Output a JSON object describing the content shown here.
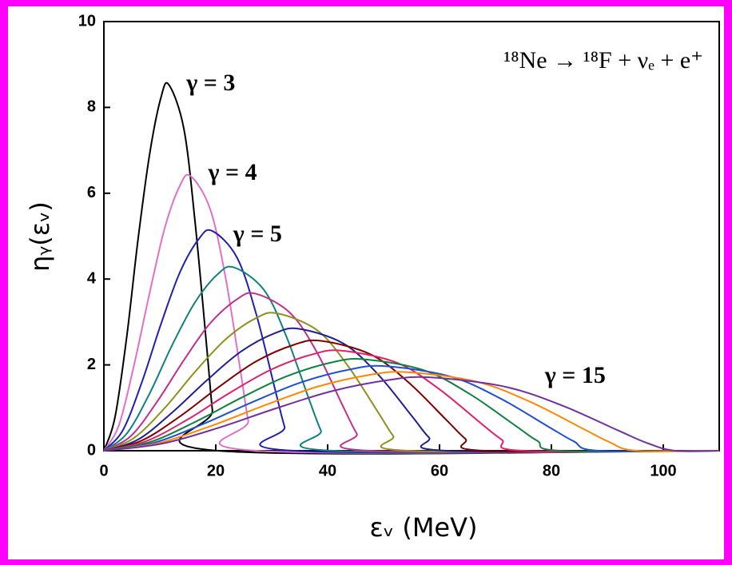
{
  "chart_data": {
    "type": "line",
    "equation": "¹⁸Ne → ¹⁸F + νₑ + e⁺",
    "xlabel": "εᵥ (MeV)",
    "ylabel": "ηᵧ(εᵥ)",
    "xlim": [
      0,
      110
    ],
    "ylim": [
      0,
      10
    ],
    "xticks": [
      0,
      20,
      40,
      60,
      80,
      100
    ],
    "yticks": [
      0,
      2,
      4,
      6,
      8,
      10
    ],
    "series": [
      {
        "name": "γ = 3",
        "color": "#000000",
        "x": [
          0,
          2.0,
          4.1,
          6.1,
          8.2,
          10.2,
          11.6,
          14.3,
          16.3,
          18.4,
          19.4,
          20.4,
          110
        ],
        "values": [
          0,
          0.79,
          2.67,
          4.92,
          6.93,
          8.23,
          8.53,
          7.5,
          5.33,
          2.39,
          0.94,
          0,
          0
        ]
      },
      {
        "name": "γ = 4",
        "color": "#e070c8",
        "x": [
          0,
          2.7,
          5.4,
          8.2,
          10.9,
          13.6,
          15.5,
          19.0,
          21.8,
          24.5,
          25.8,
          27.2,
          110
        ],
        "values": [
          0,
          0.6,
          2.0,
          3.69,
          5.2,
          6.18,
          6.4,
          5.63,
          4.0,
          1.79,
          0.7,
          0,
          0
        ]
      },
      {
        "name": "γ = 5",
        "color": "#2020b0",
        "x": [
          0,
          3.4,
          6.8,
          10.2,
          13.6,
          17,
          19.4,
          23.8,
          27.2,
          30.6,
          32.3,
          34,
          110
        ],
        "values": [
          0,
          0.48,
          1.6,
          2.95,
          4.16,
          4.94,
          5.12,
          4.5,
          3.2,
          1.43,
          0.56,
          0,
          0
        ]
      },
      {
        "color": "#108080",
        "x": [
          0,
          4.1,
          8.2,
          12.2,
          16.3,
          20.4,
          23.3,
          28.6,
          32.6,
          36.7,
          38.8,
          40.8,
          110
        ],
        "values": [
          0,
          0.4,
          1.34,
          2.46,
          3.46,
          4.12,
          4.27,
          3.75,
          2.67,
          1.19,
          0.47,
          0,
          0
        ]
      },
      {
        "color": "#c03090",
        "x": [
          0,
          4.8,
          9.5,
          14.3,
          19.0,
          23.8,
          27.1,
          33.3,
          38.1,
          42.8,
          45.2,
          47.6,
          110
        ],
        "values": [
          0,
          0.34,
          1.14,
          2.11,
          2.97,
          3.53,
          3.66,
          3.21,
          2.29,
          1.02,
          0.4,
          0,
          0
        ]
      },
      {
        "color": "#909020",
        "x": [
          0,
          5.4,
          10.9,
          16.3,
          21.8,
          27.2,
          31.0,
          38.1,
          43.5,
          49.0,
          51.7,
          54.4,
          110
        ],
        "values": [
          0,
          0.3,
          1.0,
          1.84,
          2.6,
          3.09,
          3.2,
          2.81,
          2.0,
          0.9,
          0.35,
          0,
          0
        ]
      },
      {
        "color": "#202090",
        "x": [
          0,
          6.1,
          12.2,
          18.4,
          24.5,
          30.6,
          34.9,
          42.8,
          49.0,
          55.1,
          58.1,
          61.2,
          110
        ],
        "values": [
          0,
          0.26,
          0.89,
          1.64,
          2.31,
          2.74,
          2.84,
          2.5,
          1.78,
          0.8,
          0.31,
          0,
          0
        ]
      },
      {
        "color": "#800000",
        "x": [
          0,
          6.8,
          13.6,
          20.4,
          27.2,
          34,
          38.8,
          47.6,
          54.4,
          61.2,
          64.6,
          68,
          110
        ],
        "values": [
          0,
          0.24,
          0.8,
          1.47,
          2.08,
          2.47,
          2.56,
          2.25,
          1.6,
          0.72,
          0.28,
          0,
          0
        ]
      },
      {
        "color": "#e0206a",
        "x": [
          0,
          7.5,
          15.0,
          22.4,
          29.9,
          37.4,
          42.6,
          52.4,
          59.8,
          67.3,
          71.1,
          74.8,
          110
        ],
        "values": [
          0,
          0.22,
          0.73,
          1.34,
          1.89,
          2.25,
          2.33,
          2.05,
          1.45,
          0.65,
          0.26,
          0,
          0
        ]
      },
      {
        "color": "#108040",
        "x": [
          0,
          8.2,
          16.3,
          24.5,
          32.6,
          40.8,
          46.5,
          57.1,
          65.3,
          73.4,
          77.5,
          81.6,
          110
        ],
        "values": [
          0,
          0.2,
          0.67,
          1.23,
          1.73,
          2.06,
          2.13,
          1.88,
          1.33,
          0.6,
          0.23,
          0,
          0
        ]
      },
      {
        "color": "#2050d0",
        "x": [
          0,
          8.8,
          17.7,
          26.5,
          35.4,
          44.2,
          50.4,
          61.9,
          70.7,
          79.6,
          84.0,
          88.4,
          110
        ],
        "values": [
          0,
          0.18,
          0.62,
          1.13,
          1.6,
          1.9,
          1.97,
          1.73,
          1.23,
          0.55,
          0.22,
          0,
          0
        ]
      },
      {
        "color": "#ff8800",
        "x": [
          0,
          9.5,
          19.0,
          28.6,
          38.1,
          47.6,
          54.3,
          66.6,
          76.2,
          85.7,
          90.4,
          95.2,
          110
        ],
        "values": [
          0,
          0.17,
          0.57,
          1.05,
          1.49,
          1.77,
          1.83,
          1.61,
          1.14,
          0.51,
          0.2,
          0,
          0
        ]
      },
      {
        "name": "γ = 15",
        "color": "#7030a0",
        "x": [
          0,
          10.2,
          20.4,
          30.6,
          40.8,
          51,
          58.1,
          71.4,
          81.6,
          91.8,
          96.9,
          102,
          110
        ],
        "values": [
          0,
          0.16,
          0.53,
          0.98,
          1.39,
          1.65,
          1.71,
          1.5,
          1.07,
          0.48,
          0.19,
          0,
          0
        ]
      }
    ]
  }
}
